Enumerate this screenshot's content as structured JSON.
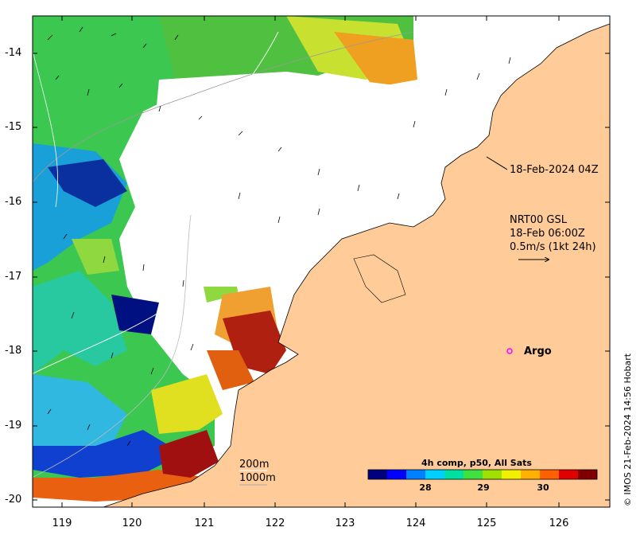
{
  "map": {
    "credit": "© IMOS 21-Feb-2024 14:56 Hobart",
    "timestamp": "18-Feb-2024 04Z",
    "currents": {
      "line1": "NRT00 GSL",
      "line2": "18-Feb 06:00Z",
      "line3": "0.5m/s (1kt 24h)"
    },
    "argo_label": "Argo",
    "isobaths": [
      "200m",
      "1000m"
    ],
    "lat_ticks": [
      "-14",
      "-15",
      "-16",
      "-17",
      "-18",
      "-19",
      "-20"
    ],
    "lon_ticks": [
      "119",
      "120",
      "121",
      "122",
      "123",
      "124",
      "125",
      "126"
    ],
    "colorbar": {
      "title": "4h comp, p50, All Sats",
      "ticks": [
        "28",
        "29",
        "30"
      ],
      "colors": [
        "#00007f",
        "#0000ff",
        "#0080ff",
        "#00d0ff",
        "#00e0a0",
        "#40e040",
        "#a0e000",
        "#f0f000",
        "#ffb000",
        "#ff6000",
        "#e00000",
        "#800000"
      ]
    },
    "colors": {
      "land": "#ffcc99",
      "argo": "#ff00ff"
    }
  }
}
